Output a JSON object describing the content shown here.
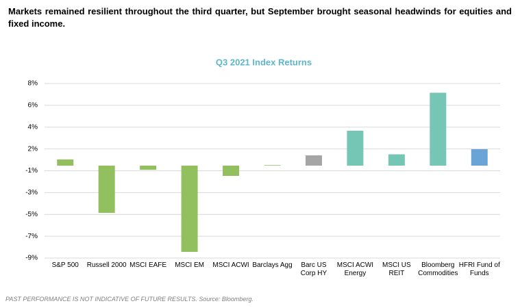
{
  "headline": "Markets remained resilient throughout the third quarter, but September brought seasonal headwinds for equities and fixed income.",
  "chart_data": {
    "type": "bar",
    "title": "Q3 2021 Index Returns",
    "categories": [
      "S&P 500",
      "Russell 2000",
      "MSCI EAFE",
      "MSCI EM",
      "MSCI ACWI",
      "Barclays Agg",
      "Barc US Corp HY",
      "MSCI ACWI Energy",
      "MSCI US REIT",
      "Bloomberg Commodities",
      "HFRI Fund of Funds"
    ],
    "values": [
      0.6,
      -4.6,
      -0.4,
      -8.4,
      -1.0,
      0.05,
      1.0,
      3.4,
      1.1,
      7.1,
      1.6
    ],
    "colors": [
      "#93c05e",
      "#93c05e",
      "#93c05e",
      "#93c05e",
      "#93c05e",
      "#93c05e",
      "#a5a5a5",
      "#75c6b5",
      "#75c6b5",
      "#75c6b5",
      "#6aa3d5"
    ],
    "ylim": [
      -9,
      8
    ],
    "yticks": [
      {
        "value": 8,
        "label": "8%"
      },
      {
        "value": 5.875,
        "label": "6%"
      },
      {
        "value": 3.75,
        "label": "4%"
      },
      {
        "value": 1.625,
        "label": "2%"
      },
      {
        "value": -0.5,
        "label": "-1%"
      },
      {
        "value": -2.625,
        "label": "-3%"
      },
      {
        "value": -4.75,
        "label": "-5%"
      },
      {
        "value": -6.875,
        "label": "-7%"
      },
      {
        "value": -9,
        "label": "-9%"
      }
    ],
    "grid": true
  },
  "footnote": "PAST PERFORMANCE IS NOT INDICATIVE OF FUTURE RESULTS. Source: Bloomberg."
}
